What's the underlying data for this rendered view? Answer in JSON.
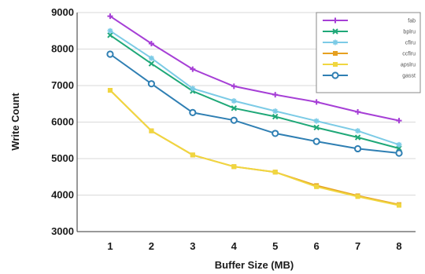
{
  "chart_data": {
    "type": "line",
    "xlabel": "Buffer Size (MB)",
    "ylabel": "Write Count",
    "x": [
      1,
      2,
      3,
      4,
      5,
      6,
      7,
      8
    ],
    "xlim": [
      0.2,
      8.4
    ],
    "ylim": [
      3000,
      9000
    ],
    "yticks": [
      3000,
      4000,
      5000,
      6000,
      7000,
      8000,
      9000
    ],
    "grid": "horizontal",
    "legend_position": "top-right",
    "series": [
      {
        "name": "fab",
        "color": "#a63fd6",
        "marker": "plus",
        "values": [
          8900,
          8150,
          7450,
          6980,
          6750,
          6550,
          6280,
          6040
        ]
      },
      {
        "name": "bplru",
        "color": "#1fa878",
        "marker": "x",
        "values": [
          8380,
          7600,
          6850,
          6380,
          6150,
          5850,
          5580,
          5280
        ]
      },
      {
        "name": "cflru",
        "color": "#7ccbe6",
        "marker": "star",
        "values": [
          8500,
          7750,
          6920,
          6580,
          6300,
          6030,
          5760,
          5380
        ]
      },
      {
        "name": "ccflru",
        "color": "#e6a020",
        "marker": "square",
        "values": [
          6870,
          5760,
          5100,
          4780,
          4630,
          4260,
          3980,
          3740
        ]
      },
      {
        "name": "apslru",
        "color": "#f0d640",
        "marker": "square",
        "values": [
          6870,
          5760,
          5100,
          4780,
          4630,
          4230,
          3960,
          3720
        ]
      },
      {
        "name": "gasst",
        "color": "#2f7fb3",
        "marker": "circle",
        "values": [
          7860,
          7050,
          6260,
          6050,
          5690,
          5470,
          5270,
          5150
        ]
      }
    ]
  }
}
